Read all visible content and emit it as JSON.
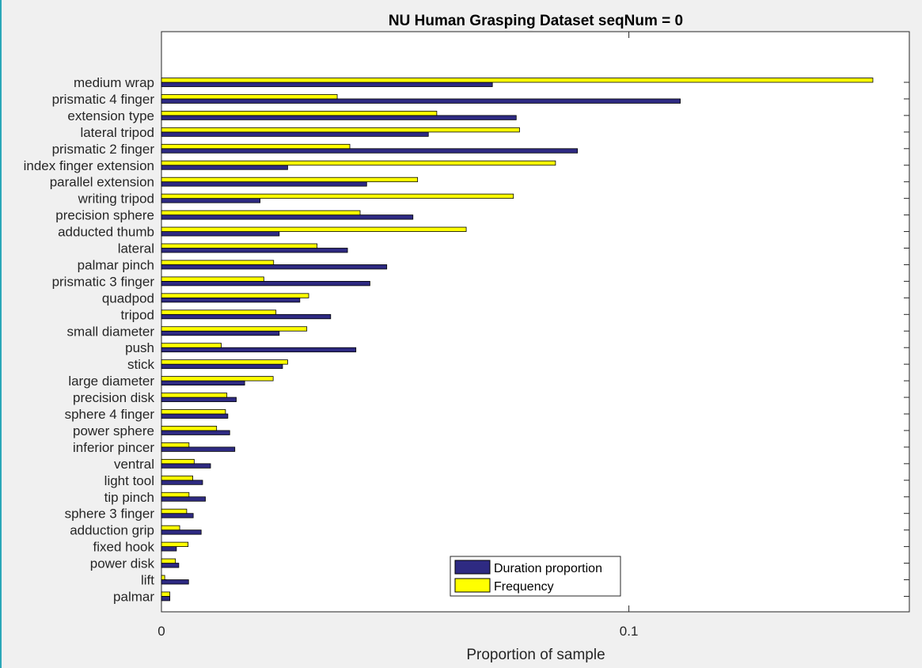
{
  "colors": {
    "duration": "#2e2a82",
    "frequency": "#ffff00",
    "axis": "#262626",
    "background": "#f0f0f0",
    "plot_background": "#ffffff"
  },
  "chart_data": {
    "type": "bar",
    "orientation": "horizontal",
    "title": "NU Human Grasping Dataset seqNum = 0",
    "xlabel": "Proportion of sample",
    "ylabel": "",
    "xlim": [
      0,
      0.16
    ],
    "xticks": [
      0,
      0.1
    ],
    "xtick_labels": [
      "0",
      "0.1"
    ],
    "grid": false,
    "legend_position": "bottom-center",
    "categories": [
      "medium wrap",
      "prismatic 4 finger",
      "extension type",
      "lateral tripod",
      "prismatic 2 finger",
      "index finger extension",
      "parallel extension",
      "writing tripod",
      "precision sphere",
      "adducted thumb",
      "lateral",
      "palmar pinch",
      "prismatic 3 finger",
      "quadpod",
      "tripod",
      "small diameter",
      "push",
      "stick",
      "large diameter",
      "precision disk",
      "sphere 4 finger",
      "power sphere",
      "inferior pincer",
      "ventral",
      "light tool",
      "tip pinch",
      "sphere 3 finger",
      "adduction grip",
      "fixed hook",
      "power disk",
      "lift",
      "palmar"
    ],
    "series": [
      {
        "name": "Duration proportion",
        "values": [
          0.0708,
          0.111,
          0.0759,
          0.0571,
          0.089,
          0.027,
          0.0439,
          0.0211,
          0.0538,
          0.0252,
          0.0398,
          0.0482,
          0.0446,
          0.0296,
          0.0362,
          0.0252,
          0.0416,
          0.0259,
          0.0178,
          0.016,
          0.0142,
          0.0146,
          0.0157,
          0.0105,
          0.0088,
          0.0094,
          0.0068,
          0.0085,
          0.0032,
          0.0037,
          0.0058,
          0.0018
        ]
      },
      {
        "name": "Frequency",
        "values": [
          0.1522,
          0.0376,
          0.0589,
          0.0766,
          0.0403,
          0.0843,
          0.0548,
          0.0753,
          0.0425,
          0.0652,
          0.0333,
          0.024,
          0.0219,
          0.0315,
          0.0245,
          0.0311,
          0.0128,
          0.027,
          0.0239,
          0.014,
          0.0137,
          0.0118,
          0.0059,
          0.007,
          0.0067,
          0.0059,
          0.0054,
          0.0039,
          0.0057,
          0.003,
          0.0007,
          0.0018
        ]
      }
    ]
  }
}
